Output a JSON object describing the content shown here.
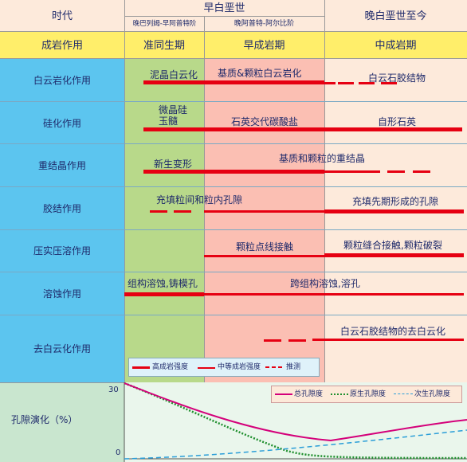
{
  "header": {
    "era_label": "时代",
    "early_cretaceous": "早白垩世",
    "sub_period_1": "晚巴列姆-早阿普特阶",
    "sub_period_2": "晚阿普特-阿尔比阶",
    "late_cretaceous": "晚白垩世至今",
    "diagenesis_label": "成岩作用",
    "stage_1": "准同生期",
    "stage_2": "早成岩期",
    "stage_3": "中成岩期"
  },
  "processes": [
    {
      "name": "白云岩化作用",
      "notes": [
        "泥晶白云化",
        "基质&颗粒白云岩化",
        "白云石胶结物"
      ]
    },
    {
      "name": "硅化作用",
      "notes": [
        "微晶硅",
        "玉髓",
        "石英交代碳酸盐",
        "自形石英"
      ]
    },
    {
      "name": "重结晶作用",
      "notes": [
        "新生变形",
        "基质和颗粒的重结晶"
      ]
    },
    {
      "name": "胶结作用",
      "notes": [
        "充填粒间和粒内孔隙",
        "充填先期形成的孔隙"
      ]
    },
    {
      "name": "压实压溶作用",
      "notes": [
        "颗粒点线接触",
        "颗粒缝合接触,颗粒破裂"
      ]
    },
    {
      "name": "溶蚀作用",
      "notes": [
        "组构溶蚀,铸模孔",
        "跨组构溶蚀,溶孔"
      ]
    },
    {
      "name": "去白云化作用",
      "notes": [
        "白云石胶结物的去白云化"
      ]
    }
  ],
  "legend_intensity": {
    "high": "高成岩强度",
    "medium": "中等成岩强度",
    "speculative": "推测"
  },
  "porosity": {
    "label": "孔隙演化（%）",
    "y_max": "30",
    "y_min": "0",
    "legend": {
      "total": "总孔隙度",
      "primary": "原生孔隙度",
      "secondary": "次生孔隙度"
    }
  },
  "colors": {
    "left_col": "#5cc5ef",
    "header_yellow": "#ffee6a",
    "stage1": "#b8d98a",
    "stage2": "#fbbfb3",
    "stage3": "#fdeadb",
    "bottom": "#c9e6cf",
    "red": "#e60012",
    "green": "#1f8f2e",
    "blue": "#2b9ed8",
    "magenta": "#d4007a"
  }
}
